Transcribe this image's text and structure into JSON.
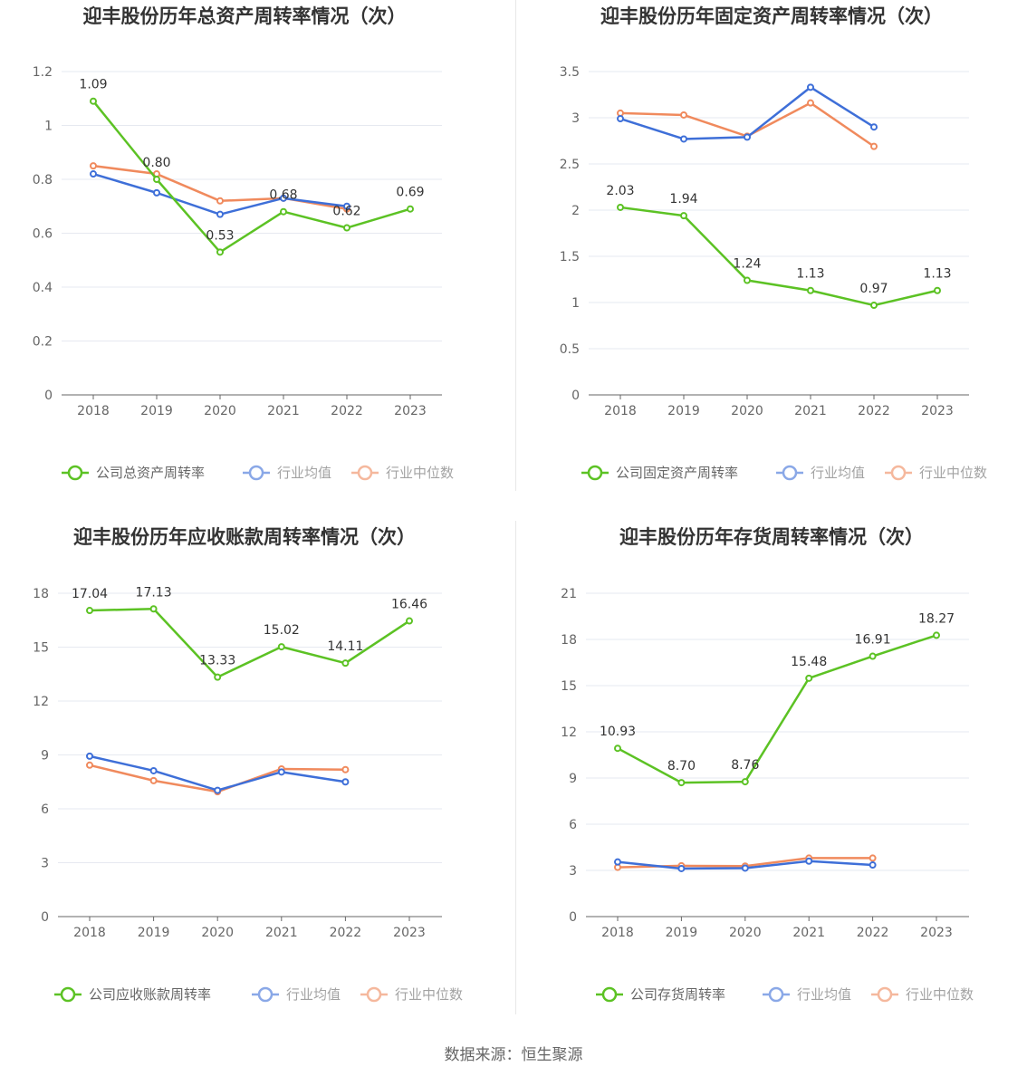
{
  "colors": {
    "company": "#5cc224",
    "average": "#3e6fd8",
    "median": "#f08a5d"
  },
  "source_text": "数据来源：恒生聚源",
  "chart_data": [
    {
      "type": "line",
      "title": "迎丰股份历年总资产周转率情况（次）",
      "categories": [
        "2018",
        "2019",
        "2020",
        "2021",
        "2022",
        "2023"
      ],
      "ylim": [
        0,
        1.2
      ],
      "yticks": [
        "0",
        "0.2",
        "0.4",
        "0.6",
        "0.8",
        "1",
        "1.2"
      ],
      "grid": true,
      "legend_position": "bottom",
      "series": [
        {
          "name": "公司总资产周转率",
          "values": [
            1.09,
            0.8,
            0.53,
            0.68,
            0.62,
            0.69
          ],
          "labels": [
            "1.09",
            "0.80",
            "0.53",
            "0.68",
            "0.62",
            "0.69"
          ]
        },
        {
          "name": "行业均值",
          "values": [
            0.82,
            0.75,
            0.67,
            0.73,
            0.7,
            null
          ]
        },
        {
          "name": "行业中位数",
          "values": [
            0.85,
            0.82,
            0.72,
            0.73,
            0.69,
            null
          ]
        }
      ]
    },
    {
      "type": "line",
      "title": "迎丰股份历年固定资产周转率情况（次）",
      "categories": [
        "2018",
        "2019",
        "2020",
        "2021",
        "2022",
        "2023"
      ],
      "ylim": [
        0,
        3.5
      ],
      "yticks": [
        "0",
        "0.5",
        "1",
        "1.5",
        "2",
        "2.5",
        "3",
        "3.5"
      ],
      "grid": true,
      "legend_position": "bottom",
      "series": [
        {
          "name": "公司固定资产周转率",
          "values": [
            2.03,
            1.94,
            1.24,
            1.13,
            0.97,
            1.13
          ],
          "labels": [
            "2.03",
            "1.94",
            "1.24",
            "1.13",
            "0.97",
            "1.13"
          ]
        },
        {
          "name": "行业均值",
          "values": [
            2.99,
            2.77,
            2.79,
            3.33,
            2.9,
            null
          ]
        },
        {
          "name": "行业中位数",
          "values": [
            3.05,
            3.03,
            2.8,
            3.16,
            2.69,
            null
          ]
        }
      ]
    },
    {
      "type": "line",
      "title": "迎丰股份历年应收账款周转率情况（次）",
      "categories": [
        "2018",
        "2019",
        "2020",
        "2021",
        "2022",
        "2023"
      ],
      "ylim": [
        0,
        18
      ],
      "yticks": [
        "0",
        "3",
        "6",
        "9",
        "12",
        "15",
        "18"
      ],
      "grid": true,
      "legend_position": "bottom",
      "series": [
        {
          "name": "公司应收账款周转率",
          "values": [
            17.04,
            17.13,
            13.33,
            15.02,
            14.11,
            16.46
          ],
          "labels": [
            "17.04",
            "17.13",
            "13.33",
            "15.02",
            "14.11",
            "16.46"
          ]
        },
        {
          "name": "行业均值",
          "values": [
            8.93,
            8.12,
            7.03,
            8.05,
            7.5,
            null
          ]
        },
        {
          "name": "行业中位数",
          "values": [
            8.43,
            7.57,
            6.95,
            8.22,
            8.18,
            null
          ]
        }
      ]
    },
    {
      "type": "line",
      "title": "迎丰股份历年存货周转率情况（次）",
      "categories": [
        "2018",
        "2019",
        "2020",
        "2021",
        "2022",
        "2023"
      ],
      "ylim": [
        0,
        21
      ],
      "yticks": [
        "0",
        "3",
        "6",
        "9",
        "12",
        "15",
        "18",
        "21"
      ],
      "grid": true,
      "legend_position": "bottom",
      "series": [
        {
          "name": "公司存货周转率",
          "values": [
            10.93,
            8.7,
            8.76,
            15.48,
            16.91,
            18.27
          ],
          "labels": [
            "10.93",
            "8.70",
            "8.76",
            "15.48",
            "16.91",
            "18.27"
          ]
        },
        {
          "name": "行业均值",
          "values": [
            3.55,
            3.12,
            3.15,
            3.6,
            3.35,
            null
          ]
        },
        {
          "name": "行业中位数",
          "values": [
            3.2,
            3.3,
            3.28,
            3.8,
            3.8,
            null
          ]
        }
      ]
    }
  ]
}
